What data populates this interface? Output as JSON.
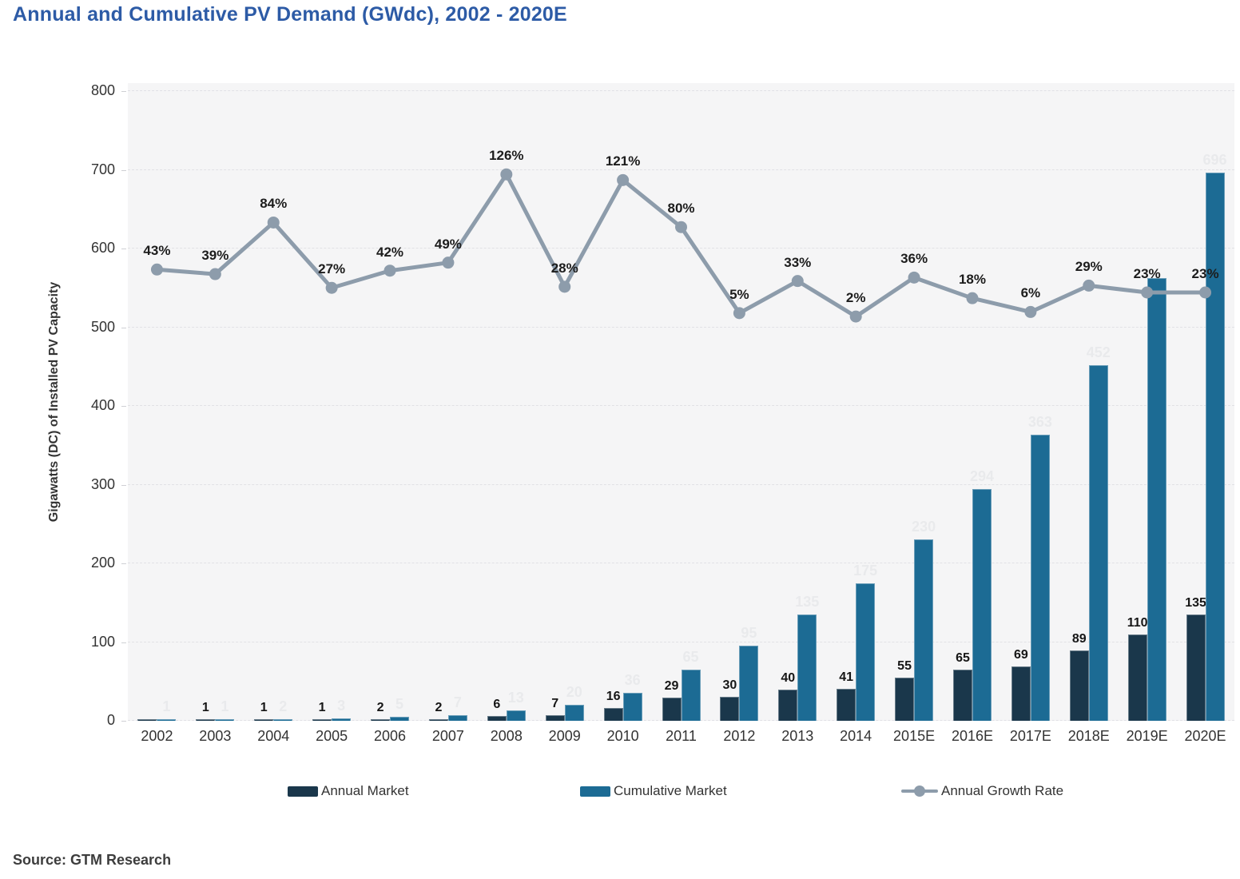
{
  "title": "Annual and Cumulative PV Demand (GWdc), 2002 - 2020E",
  "source": "Source: GTM Research",
  "colors": {
    "annual_bar": "#1a374b",
    "cumulative_bar": "#1c6b94",
    "growth_line": "#8d9cab",
    "title_text": "#2d5ba6",
    "axis_text": "#333333",
    "value_label": "#161616",
    "faint_label": "#e9eaec",
    "plot_bg": "#f5f5f6",
    "gridline": "#e1e1e5",
    "source_text": "#3d3d3d"
  },
  "chart_data": {
    "type": "bar",
    "subtype": "grouped bars with overlay line",
    "title": "Annual and Cumulative PV Demand (GWdc), 2002 - 2020E",
    "xlabel": "",
    "ylabel": "Gigawatts (DC) of Installed PV Capacity",
    "ylim": [
      0,
      800
    ],
    "yticks": [
      0,
      100,
      200,
      300,
      400,
      500,
      600,
      700,
      800
    ],
    "grid": "horizontal dashed",
    "legend_position": "bottom",
    "categories": [
      "2002",
      "2003",
      "2004",
      "2005",
      "2006",
      "2007",
      "2008",
      "2009",
      "2010",
      "2011",
      "2012",
      "2013",
      "2014",
      "2015E",
      "2016E",
      "2017E",
      "2018E",
      "2019E",
      "2020E"
    ],
    "series": [
      {
        "name": "Annual Market",
        "type": "bar",
        "color": "#1a374b",
        "values": [
          0.5,
          1,
          1,
          1,
          2,
          2,
          6,
          7,
          16,
          29,
          30,
          40,
          41,
          55,
          65,
          69,
          89,
          110,
          135
        ],
        "labels": [
          "",
          "1",
          "1",
          "1",
          "2",
          "2",
          "6",
          "7",
          "16",
          "29",
          "30",
          "40",
          "41",
          "55",
          "65",
          "69",
          "89",
          "110",
          "135"
        ]
      },
      {
        "name": "Cumulative Market",
        "type": "bar",
        "color": "#1c6b94",
        "values": [
          1,
          1,
          2,
          3,
          5,
          7,
          13,
          20,
          36,
          65,
          95,
          135,
          175,
          230,
          294,
          363,
          452,
          562,
          696
        ],
        "labels": [
          "1",
          "1",
          "2",
          "3",
          "5",
          "7",
          "13",
          "20",
          "36",
          "65",
          "95",
          "135",
          "175",
          "230",
          "294",
          "363",
          "452",
          "",
          "696"
        ]
      },
      {
        "name": "Annual Growth Rate",
        "type": "line",
        "color": "#8d9cab",
        "values_pct": [
          43,
          39,
          84,
          27,
          42,
          49,
          126,
          28,
          121,
          80,
          5,
          33,
          2,
          36,
          18,
          6,
          29,
          23,
          23
        ],
        "labels": [
          "43%",
          "39%",
          "84%",
          "27%",
          "42%",
          "49%",
          "126%",
          "28%",
          "121%",
          "80%",
          "5%",
          "33%",
          "2%",
          "36%",
          "18%",
          "6%",
          "29%",
          "23%",
          "23%"
        ]
      }
    ]
  }
}
